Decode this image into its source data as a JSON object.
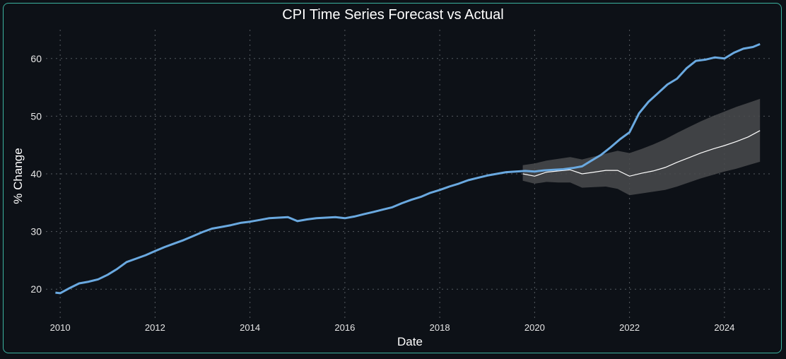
{
  "chart_data": {
    "type": "line",
    "title": "CPI Time Series Forecast vs Actual",
    "xlabel": "Date",
    "ylabel": "% Change",
    "xlim": [
      2009.7,
      2025.0
    ],
    "ylim": [
      15,
      65
    ],
    "x_ticks": [
      2010,
      2012,
      2014,
      2016,
      2018,
      2020,
      2022,
      2024
    ],
    "y_ticks": [
      20,
      30,
      40,
      50,
      60
    ],
    "grid": true,
    "colors": {
      "background": "#0d1117",
      "border": "#3bb3a0",
      "actual": "#6aa9e0",
      "forecast": "#ffffff",
      "band": "#4a4b4d",
      "grid": "#555a60",
      "text": "#e6e6e6"
    },
    "series": [
      {
        "role": "actual",
        "x": [
          2009.9,
          2010.0,
          2010.2,
          2010.4,
          2010.6,
          2010.8,
          2011.0,
          2011.2,
          2011.4,
          2011.6,
          2011.8,
          2012.0,
          2012.2,
          2012.4,
          2012.6,
          2012.8,
          2013.0,
          2013.2,
          2013.4,
          2013.6,
          2013.8,
          2014.0,
          2014.2,
          2014.4,
          2014.6,
          2014.8,
          2015.0,
          2015.2,
          2015.4,
          2015.6,
          2015.8,
          2016.0,
          2016.2,
          2016.4,
          2016.6,
          2016.8,
          2017.0,
          2017.2,
          2017.4,
          2017.6,
          2017.8,
          2018.0,
          2018.2,
          2018.4,
          2018.6,
          2018.8,
          2019.0,
          2019.2,
          2019.4,
          2019.6,
          2019.8,
          2020.0,
          2020.2,
          2020.4,
          2020.6,
          2020.8,
          2021.0,
          2021.2,
          2021.4,
          2021.6,
          2021.8,
          2022.0,
          2022.2,
          2022.4,
          2022.6,
          2022.8,
          2023.0,
          2023.2,
          2023.4,
          2023.6,
          2023.8,
          2024.0,
          2024.2,
          2024.4,
          2024.6,
          2024.75
        ],
        "y": [
          19.4,
          19.3,
          20.2,
          21.0,
          21.3,
          21.7,
          22.5,
          23.5,
          24.7,
          25.3,
          25.9,
          26.6,
          27.3,
          27.9,
          28.5,
          29.2,
          29.9,
          30.5,
          30.8,
          31.1,
          31.5,
          31.7,
          32.0,
          32.3,
          32.4,
          32.5,
          31.8,
          32.1,
          32.3,
          32.4,
          32.5,
          32.3,
          32.6,
          33.0,
          33.4,
          33.8,
          34.2,
          34.9,
          35.5,
          36.0,
          36.7,
          37.2,
          37.8,
          38.3,
          38.9,
          39.3,
          39.7,
          40.0,
          40.3,
          40.4,
          40.5,
          40.4,
          40.6,
          40.7,
          40.8,
          41.0,
          41.3,
          42.3,
          43.3,
          44.6,
          46.0,
          47.2,
          50.5,
          52.5,
          54.0,
          55.5,
          56.5,
          58.3,
          59.6,
          59.8,
          60.2,
          60.0,
          61.0,
          61.7,
          62.0,
          62.5
        ]
      },
      {
        "role": "forecast",
        "x": [
          2019.75,
          2020.0,
          2020.25,
          2020.5,
          2020.75,
          2021.0,
          2021.25,
          2021.5,
          2021.75,
          2022.0,
          2022.25,
          2022.5,
          2022.75,
          2023.0,
          2023.25,
          2023.5,
          2023.75,
          2024.0,
          2024.25,
          2024.5,
          2024.75
        ],
        "y": [
          40.0,
          39.6,
          40.3,
          40.5,
          40.7,
          40.0,
          40.3,
          40.6,
          40.6,
          39.6,
          40.1,
          40.5,
          41.1,
          42.0,
          42.8,
          43.6,
          44.3,
          44.9,
          45.6,
          46.4,
          47.5
        ],
        "upper": [
          41.5,
          41.8,
          42.3,
          42.6,
          42.9,
          42.5,
          43.0,
          43.5,
          44.0,
          43.6,
          44.3,
          45.1,
          46.0,
          47.1,
          48.1,
          49.1,
          50.0,
          50.8,
          51.6,
          52.3,
          53.0
        ],
        "lower": [
          38.8,
          38.3,
          38.6,
          38.5,
          38.5,
          37.6,
          37.7,
          37.8,
          37.4,
          36.3,
          36.6,
          36.9,
          37.2,
          37.8,
          38.5,
          39.2,
          39.8,
          40.4,
          40.9,
          41.5,
          42.1
        ]
      }
    ]
  }
}
